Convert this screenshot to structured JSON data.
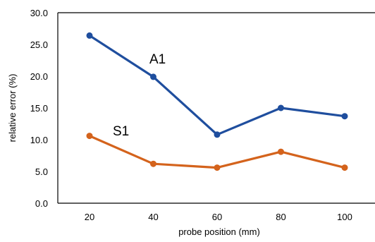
{
  "chart_data": {
    "type": "line",
    "title": "",
    "xlabel": "probe position (mm)",
    "ylabel": "relative error (%)",
    "categories": [
      "20",
      "40",
      "60",
      "80",
      "100"
    ],
    "x": [
      20,
      40,
      60,
      80,
      100
    ],
    "ylim": [
      0.0,
      30.0
    ],
    "yticks": [
      "0.0",
      "5.0",
      "10.0",
      "15.0",
      "20.0",
      "25.0",
      "30.0"
    ],
    "grid": false,
    "legend": "none",
    "series": [
      {
        "name": "A1",
        "color": "#1F4E9E",
        "values": [
          26.4,
          19.9,
          10.8,
          15.0,
          13.7
        ]
      },
      {
        "name": "S1",
        "color": "#D4631C",
        "values": [
          10.6,
          6.2,
          5.6,
          8.1,
          5.6
        ]
      }
    ]
  }
}
